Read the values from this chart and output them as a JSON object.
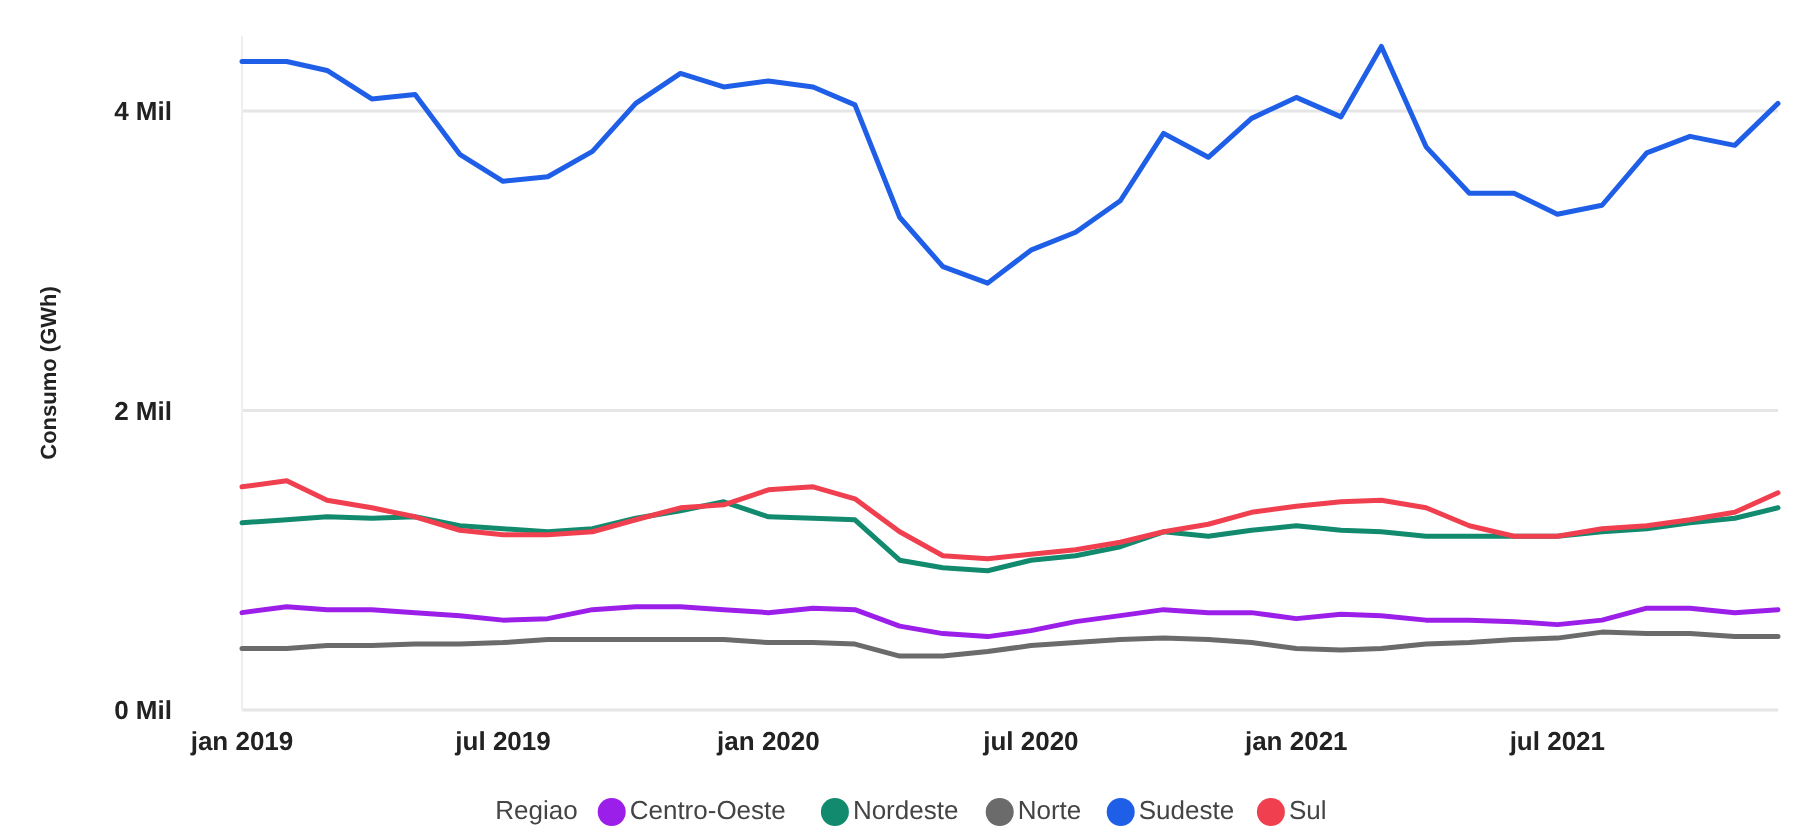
{
  "chart_data": {
    "type": "line",
    "ylabel": "Consumo (GWh)",
    "legend_title": "Regiao",
    "legend": "bottom",
    "grid": "y",
    "marker": "none",
    "line_style": "solid",
    "x": [
      "2019-01",
      "2019-02",
      "2019-03",
      "2019-04",
      "2019-05",
      "2019-06",
      "2019-07",
      "2019-08",
      "2019-09",
      "2019-10",
      "2019-11",
      "2019-12",
      "2020-01",
      "2020-02",
      "2020-03",
      "2020-04",
      "2020-05",
      "2020-06",
      "2020-07",
      "2020-08",
      "2020-09",
      "2020-10",
      "2020-11",
      "2020-12",
      "2021-01",
      "2021-02",
      "2021-03",
      "2021-04",
      "2021-05",
      "2021-06",
      "2021-07",
      "2021-08",
      "2021-09",
      "2021-10",
      "2021-11",
      "2021-12"
    ],
    "xlim": [
      "2019-01",
      "2021-12"
    ],
    "xticks": [
      {
        "value": "2019-01",
        "label": "jan 2019"
      },
      {
        "value": "2019-07",
        "label": "jul 2019"
      },
      {
        "value": "2020-01",
        "label": "jan 2020"
      },
      {
        "value": "2020-07",
        "label": "jul 2020"
      },
      {
        "value": "2021-01",
        "label": "jan 2021"
      },
      {
        "value": "2021-07",
        "label": "jul 2021"
      }
    ],
    "ylim": [
      0,
      4.5
    ],
    "yticks": [
      {
        "value": 0,
        "label": "0 Mil"
      },
      {
        "value": 2,
        "label": "2 Mil"
      },
      {
        "value": 4,
        "label": "4 Mil"
      }
    ],
    "series": [
      {
        "name": "Centro-Oeste",
        "color": "#9b1fe8",
        "values": [
          0.65,
          0.69,
          0.67,
          0.67,
          0.65,
          0.63,
          0.6,
          0.61,
          0.67,
          0.69,
          0.69,
          0.67,
          0.65,
          0.68,
          0.67,
          0.56,
          0.51,
          0.49,
          0.53,
          0.59,
          0.63,
          0.67,
          0.65,
          0.65,
          0.61,
          0.64,
          0.63,
          0.6,
          0.6,
          0.59,
          0.57,
          0.6,
          0.68,
          0.68,
          0.65,
          0.67
        ]
      },
      {
        "name": "Nordeste",
        "color": "#118a6e",
        "values": [
          1.25,
          1.27,
          1.29,
          1.28,
          1.29,
          1.23,
          1.21,
          1.19,
          1.21,
          1.28,
          1.33,
          1.39,
          1.29,
          1.28,
          1.27,
          1.0,
          0.95,
          0.93,
          1.0,
          1.03,
          1.09,
          1.19,
          1.16,
          1.2,
          1.23,
          1.2,
          1.19,
          1.16,
          1.16,
          1.16,
          1.16,
          1.19,
          1.21,
          1.25,
          1.28,
          1.35
        ]
      },
      {
        "name": "Norte",
        "color": "#6b6b6b",
        "values": [
          0.41,
          0.41,
          0.43,
          0.43,
          0.44,
          0.44,
          0.45,
          0.47,
          0.47,
          0.47,
          0.47,
          0.47,
          0.45,
          0.45,
          0.44,
          0.36,
          0.36,
          0.39,
          0.43,
          0.45,
          0.47,
          0.48,
          0.47,
          0.45,
          0.41,
          0.4,
          0.41,
          0.44,
          0.45,
          0.47,
          0.48,
          0.52,
          0.51,
          0.51,
          0.49,
          0.49
        ]
      },
      {
        "name": "Sudeste",
        "color": "#1f5fe8",
        "values": [
          4.33,
          4.33,
          4.27,
          4.08,
          4.11,
          3.71,
          3.53,
          3.56,
          3.73,
          4.05,
          4.25,
          4.16,
          4.2,
          4.16,
          4.04,
          3.29,
          2.96,
          2.85,
          3.07,
          3.19,
          3.4,
          3.85,
          3.69,
          3.95,
          4.09,
          3.96,
          4.43,
          3.76,
          3.45,
          3.45,
          3.31,
          3.37,
          3.72,
          3.83,
          3.77,
          4.05
        ]
      },
      {
        "name": "Sul",
        "color": "#f0404f",
        "values": [
          1.49,
          1.53,
          1.4,
          1.35,
          1.29,
          1.2,
          1.17,
          1.17,
          1.19,
          1.27,
          1.35,
          1.37,
          1.47,
          1.49,
          1.41,
          1.19,
          1.03,
          1.01,
          1.04,
          1.07,
          1.12,
          1.19,
          1.24,
          1.32,
          1.36,
          1.39,
          1.4,
          1.35,
          1.23,
          1.16,
          1.16,
          1.21,
          1.23,
          1.27,
          1.32,
          1.45
        ]
      }
    ]
  }
}
